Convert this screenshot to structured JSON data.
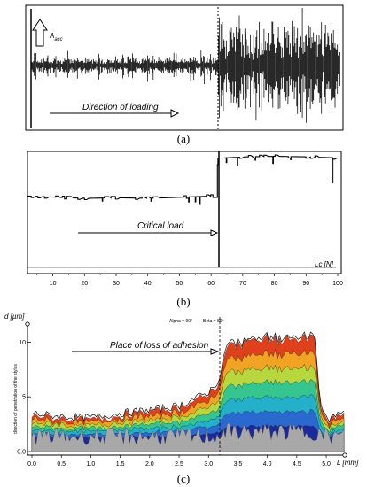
{
  "panels": [
    {
      "caption": "(a)"
    },
    {
      "caption": "(b)"
    },
    {
      "caption": "(c)"
    }
  ],
  "chart_data": [
    {
      "type": "line",
      "panel": "a",
      "annotations": [
        "A",
        "acc",
        "Direction of loading"
      ],
      "signal": {
        "before_threshold_amplitude": "low",
        "after_threshold_amplitude": "high"
      },
      "grid": false
    },
    {
      "type": "line",
      "panel": "b",
      "xlabel": "Lc [N]",
      "x_ticks": [
        "10",
        "20",
        "30",
        "40",
        "50",
        "60",
        "70",
        "80",
        "90",
        "100"
      ],
      "xlim": [
        2,
        100
      ],
      "critical_load": 62,
      "annotations": [
        "Critical load"
      ],
      "series": [
        {
          "x": [
            2,
            10,
            20,
            30,
            40,
            50,
            60,
            62,
            63,
            70,
            80,
            90,
            95,
            100
          ],
          "y": [
            0.62,
            0.61,
            0.6,
            0.605,
            0.6,
            0.61,
            0.62,
            0.62,
            0.95,
            0.96,
            0.965,
            0.96,
            0.955,
            0.95
          ]
        }
      ],
      "grid": false
    },
    {
      "type": "area",
      "panel": "c",
      "ylabel_main": "d [µm]",
      "ylabel_side": "direction of penetration of the stylus",
      "xlabel": "L [mm]",
      "x_ticks": [
        "0.0",
        "0.5",
        "1.0",
        "1.5",
        "2.0",
        "2.5",
        "3.0",
        "3.5",
        "4.0",
        "4.5",
        "5.0"
      ],
      "y_ticks": [
        "0.0",
        "5",
        "10"
      ],
      "xlim": [
        0,
        5.3
      ],
      "ylim": [
        0,
        11
      ],
      "annotations": [
        "Place of loss of adhesion",
        "Alpha = 90°",
        "Beta = 89°"
      ],
      "loss_of_adhesion_x": 3.22,
      "surface_profile": {
        "x": [
          0,
          0.5,
          1.0,
          1.5,
          2.0,
          2.5,
          3.0,
          3.2,
          3.3,
          3.6,
          4.0,
          4.4,
          4.8,
          4.9,
          5.0,
          5.3
        ],
        "y": [
          3.3,
          3.0,
          2.9,
          3.3,
          3.6,
          4.0,
          5.2,
          6.5,
          9.6,
          10.0,
          10.2,
          10.1,
          10.4,
          4.5,
          2.6,
          3.6
        ]
      },
      "colors": [
        "#1a2a9c",
        "#2a6ad0",
        "#23b0c8",
        "#35c690",
        "#b8d73e",
        "#f1a323",
        "#e1401d"
      ],
      "grid": false
    }
  ]
}
